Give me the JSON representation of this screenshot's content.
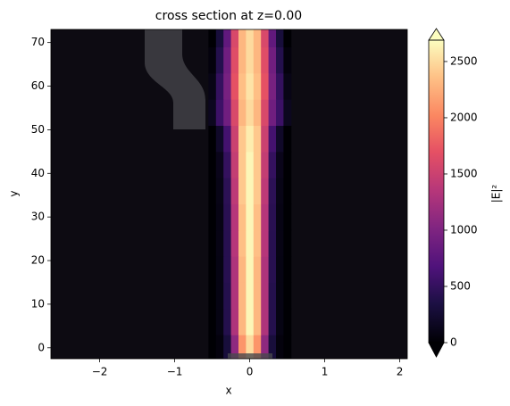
{
  "chart_data": {
    "type": "heatmap",
    "title": "cross section at z=0.00",
    "x_label": "x",
    "y_label": "y",
    "colorbar_label": "|E|²",
    "colormap": "magma",
    "x": [
      -0.5,
      -0.4,
      -0.3,
      -0.2,
      -0.1,
      0,
      0.1,
      0.2,
      0.3,
      0.4,
      0.5
    ],
    "y": [
      0,
      6,
      12,
      18,
      24,
      30,
      36,
      42,
      48,
      54,
      60,
      66,
      72
    ],
    "values": [
      [
        0,
        50,
        300,
        1100,
        2100,
        2500,
        2100,
        1100,
        300,
        50,
        0
      ],
      [
        0,
        80,
        400,
        1300,
        2300,
        2650,
        2300,
        1300,
        400,
        80,
        0
      ],
      [
        0,
        80,
        400,
        1300,
        2300,
        2650,
        2300,
        1300,
        400,
        80,
        0
      ],
      [
        0,
        80,
        420,
        1300,
        2300,
        2650,
        2300,
        1300,
        420,
        80,
        0
      ],
      [
        0,
        90,
        420,
        1350,
        2350,
        2650,
        2350,
        1350,
        420,
        90,
        0
      ],
      [
        0,
        90,
        430,
        1350,
        2350,
        2650,
        2350,
        1350,
        430,
        90,
        0
      ],
      [
        0,
        100,
        450,
        1400,
        2400,
        2650,
        2400,
        1400,
        450,
        100,
        0
      ],
      [
        0,
        120,
        500,
        1450,
        2400,
        2650,
        2400,
        1450,
        500,
        120,
        0
      ],
      [
        0,
        200,
        600,
        1500,
        2400,
        2600,
        2400,
        1500,
        600,
        200,
        0
      ],
      [
        150,
        550,
        900,
        1600,
        2300,
        2500,
        2300,
        1600,
        900,
        550,
        150
      ],
      [
        100,
        500,
        950,
        1700,
        2350,
        2550,
        2350,
        1700,
        950,
        500,
        100
      ],
      [
        50,
        400,
        900,
        1650,
        2300,
        2500,
        2300,
        1650,
        900,
        400,
        50
      ],
      [
        0,
        300,
        800,
        1600,
        2300,
        2500,
        2300,
        1600,
        800,
        300,
        0
      ]
    ],
    "xlim": [
      -2.65,
      2.1
    ],
    "ylim": [
      -2.5,
      73
    ],
    "clim": [
      0,
      2690
    ],
    "xticks": [
      {
        "value": -2,
        "label": "−2"
      },
      {
        "value": -1,
        "label": "−1"
      },
      0,
      1,
      2
    ],
    "yticks": [
      0,
      10,
      20,
      30,
      40,
      50,
      60,
      70
    ],
    "cticks": [
      0,
      500,
      1000,
      1500,
      2000,
      2500
    ]
  }
}
